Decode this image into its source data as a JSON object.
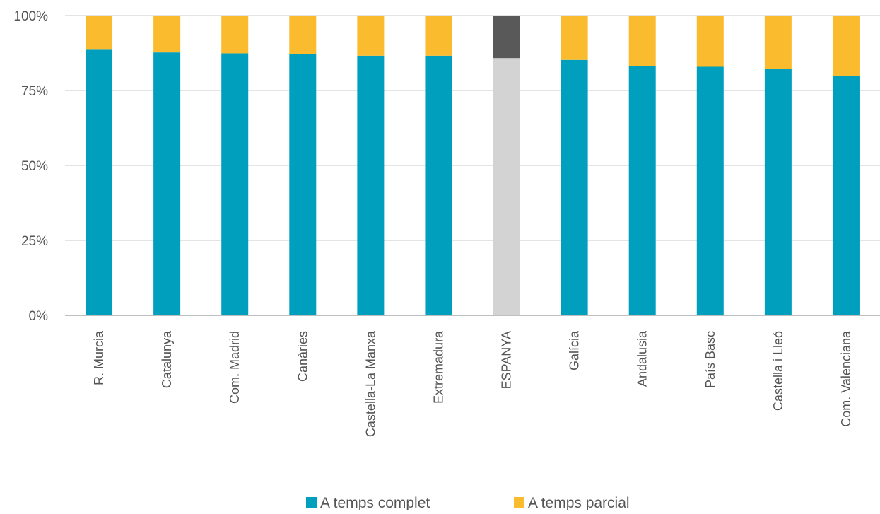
{
  "chart_data": {
    "type": "bar",
    "stacked": true,
    "percent": true,
    "categories": [
      "R. Murcia",
      "Catalunya",
      "Com. Madrid",
      "Canàries",
      "Castella-La Manxa",
      "Extremadura",
      "ESPANYA",
      "Galícia",
      "Andalusia",
      "País Basc",
      "Castella i Lleó",
      "Com. Valenciana"
    ],
    "series": [
      {
        "name": "A temps complet",
        "color": "#009fbd",
        "values": [
          88.6,
          87.7,
          87.4,
          87.2,
          86.6,
          86.6,
          85.8,
          85.2,
          83.1,
          82.9,
          82.2,
          79.9
        ]
      },
      {
        "name": "A temps parcial",
        "color": "#fbbb2e",
        "values": [
          11.4,
          12.3,
          12.6,
          12.8,
          13.4,
          13.4,
          14.2,
          14.8,
          16.9,
          17.1,
          17.8,
          20.1
        ]
      }
    ],
    "highlight": {
      "category": "ESPANYA",
      "colors": [
        "#d3d3d3",
        "#595959"
      ]
    },
    "yticks": [
      "0%",
      "25%",
      "50%",
      "75%",
      "100%"
    ],
    "ylim": [
      0,
      100
    ],
    "grid": true,
    "legend_position": "bottom"
  }
}
